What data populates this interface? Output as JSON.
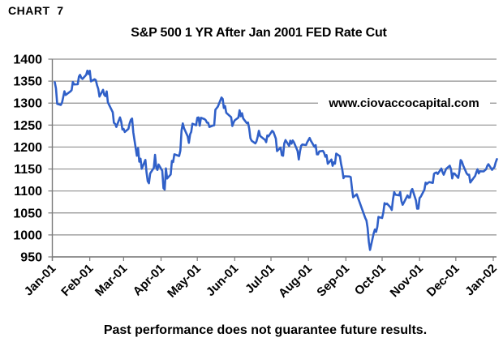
{
  "header": {
    "chart_label": "CHART  7"
  },
  "watermark": {
    "text": "www.ciovaccocapital.com"
  },
  "footer": {
    "disclaimer": "Past performance does not guarantee future results."
  },
  "colors": {
    "line": "#3060C8",
    "grid": "#8F8F8F",
    "axis": "#7A7A7A",
    "text": "#000000",
    "background": "#FFFFFF"
  },
  "chart_data": {
    "type": "line",
    "title": "S&P 500 1 YR After Jan 2001 FED Rate Cut",
    "xlabel": "",
    "ylabel": "",
    "ylim": [
      950,
      1400
    ],
    "y_ticks": [
      1400,
      1350,
      1300,
      1250,
      1200,
      1150,
      1100,
      1050,
      1000,
      950
    ],
    "grid": "horizontal-only",
    "legend_position": "none",
    "x_tick_labels": [
      "Jan-01",
      "Feb-01",
      "Mar-01",
      "Apr-01",
      "May-01",
      "Jun-01",
      "Jul-01",
      "Aug-01",
      "Sep-01",
      "Oct-01",
      "Nov-01",
      "Dec-01",
      "Jan-02"
    ],
    "x_tick_day_offsets": [
      0,
      31,
      59,
      90,
      120,
      151,
      181,
      212,
      243,
      273,
      304,
      334,
      365
    ],
    "series": [
      {
        "name": "S&P 500",
        "points": [
          [
            "2001-01-03",
            1347.56
          ],
          [
            "2001-01-04",
            1333.34
          ],
          [
            "2001-01-05",
            1298.35
          ],
          [
            "2001-01-08",
            1295.86
          ],
          [
            "2001-01-09",
            1300.8
          ],
          [
            "2001-01-10",
            1313.27
          ],
          [
            "2001-01-11",
            1326.82
          ],
          [
            "2001-01-12",
            1318.55
          ],
          [
            "2001-01-16",
            1326.65
          ],
          [
            "2001-01-17",
            1329.47
          ],
          [
            "2001-01-18",
            1347.97
          ],
          [
            "2001-01-19",
            1342.54
          ],
          [
            "2001-01-22",
            1342.9
          ],
          [
            "2001-01-23",
            1360.4
          ],
          [
            "2001-01-24",
            1364.3
          ],
          [
            "2001-01-25",
            1357.51
          ],
          [
            "2001-01-26",
            1354.95
          ],
          [
            "2001-01-29",
            1364.17
          ],
          [
            "2001-01-30",
            1373.73
          ],
          [
            "2001-01-31",
            1366.01
          ],
          [
            "2001-02-01",
            1373.47
          ],
          [
            "2001-02-02",
            1349.47
          ],
          [
            "2001-02-05",
            1354.31
          ],
          [
            "2001-02-06",
            1352.26
          ],
          [
            "2001-02-07",
            1340.89
          ],
          [
            "2001-02-08",
            1332.53
          ],
          [
            "2001-02-09",
            1314.76
          ],
          [
            "2001-02-12",
            1330.31
          ],
          [
            "2001-02-13",
            1318.8
          ],
          [
            "2001-02-14",
            1315.92
          ],
          [
            "2001-02-15",
            1326.61
          ],
          [
            "2001-02-16",
            1301.53
          ],
          [
            "2001-02-20",
            1278.94
          ],
          [
            "2001-02-21",
            1255.27
          ],
          [
            "2001-02-22",
            1252.82
          ],
          [
            "2001-02-23",
            1245.86
          ],
          [
            "2001-02-26",
            1267.65
          ],
          [
            "2001-02-27",
            1257.94
          ],
          [
            "2001-02-28",
            1239.94
          ],
          [
            "2001-03-01",
            1241.23
          ],
          [
            "2001-03-02",
            1234.18
          ],
          [
            "2001-03-05",
            1241.41
          ],
          [
            "2001-03-06",
            1253.8
          ],
          [
            "2001-03-07",
            1261.89
          ],
          [
            "2001-03-08",
            1264.74
          ],
          [
            "2001-03-09",
            1233.42
          ],
          [
            "2001-03-12",
            1180.16
          ],
          [
            "2001-03-13",
            1197.66
          ],
          [
            "2001-03-14",
            1166.71
          ],
          [
            "2001-03-15",
            1173.56
          ],
          [
            "2001-03-16",
            1150.53
          ],
          [
            "2001-03-19",
            1170.81
          ],
          [
            "2001-03-20",
            1142.62
          ],
          [
            "2001-03-21",
            1122.14
          ],
          [
            "2001-03-22",
            1117.58
          ],
          [
            "2001-03-23",
            1139.83
          ],
          [
            "2001-03-26",
            1152.69
          ],
          [
            "2001-03-27",
            1182.17
          ],
          [
            "2001-03-28",
            1153.29
          ],
          [
            "2001-03-29",
            1147.95
          ],
          [
            "2001-03-30",
            1160.33
          ],
          [
            "2001-04-02",
            1145.87
          ],
          [
            "2001-04-03",
            1106.46
          ],
          [
            "2001-04-04",
            1103.25
          ],
          [
            "2001-04-05",
            1151.44
          ],
          [
            "2001-04-06",
            1128.43
          ],
          [
            "2001-04-09",
            1137.59
          ],
          [
            "2001-04-10",
            1168.38
          ],
          [
            "2001-04-11",
            1165.89
          ],
          [
            "2001-04-12",
            1183.5
          ],
          [
            "2001-04-16",
            1179.68
          ],
          [
            "2001-04-17",
            1191.81
          ],
          [
            "2001-04-18",
            1238.16
          ],
          [
            "2001-04-19",
            1253.69
          ],
          [
            "2001-04-20",
            1242.98
          ],
          [
            "2001-04-23",
            1224.36
          ],
          [
            "2001-04-24",
            1209.47
          ],
          [
            "2001-04-25",
            1228.75
          ],
          [
            "2001-04-26",
            1234.52
          ],
          [
            "2001-04-27",
            1253.05
          ],
          [
            "2001-04-30",
            1249.46
          ],
          [
            "2001-05-01",
            1266.44
          ],
          [
            "2001-05-02",
            1267.43
          ],
          [
            "2001-05-03",
            1248.58
          ],
          [
            "2001-05-04",
            1266.61
          ],
          [
            "2001-05-07",
            1263.51
          ],
          [
            "2001-05-08",
            1261.2
          ],
          [
            "2001-05-09",
            1255.54
          ],
          [
            "2001-05-10",
            1255.18
          ],
          [
            "2001-05-11",
            1245.67
          ],
          [
            "2001-05-14",
            1248.92
          ],
          [
            "2001-05-15",
            1249.44
          ],
          [
            "2001-05-16",
            1284.99
          ],
          [
            "2001-05-17",
            1288.49
          ],
          [
            "2001-05-18",
            1291.96
          ],
          [
            "2001-05-21",
            1312.83
          ],
          [
            "2001-05-22",
            1309.38
          ],
          [
            "2001-05-23",
            1289.05
          ],
          [
            "2001-05-24",
            1293.17
          ],
          [
            "2001-05-25",
            1277.89
          ],
          [
            "2001-05-29",
            1267.93
          ],
          [
            "2001-05-30",
            1248.08
          ],
          [
            "2001-05-31",
            1255.82
          ],
          [
            "2001-06-01",
            1260.67
          ],
          [
            "2001-06-04",
            1267.11
          ],
          [
            "2001-06-05",
            1283.57
          ],
          [
            "2001-06-06",
            1270.03
          ],
          [
            "2001-06-07",
            1276.96
          ],
          [
            "2001-06-08",
            1264.96
          ],
          [
            "2001-06-11",
            1254.39
          ],
          [
            "2001-06-12",
            1255.85
          ],
          [
            "2001-06-13",
            1241.6
          ],
          [
            "2001-06-14",
            1219.87
          ],
          [
            "2001-06-15",
            1214.36
          ],
          [
            "2001-06-18",
            1208.43
          ],
          [
            "2001-06-19",
            1212.58
          ],
          [
            "2001-06-20",
            1223.14
          ],
          [
            "2001-06-21",
            1237.04
          ],
          [
            "2001-06-22",
            1225.35
          ],
          [
            "2001-06-25",
            1218.6
          ],
          [
            "2001-06-26",
            1216.76
          ],
          [
            "2001-06-27",
            1211.07
          ],
          [
            "2001-06-28",
            1226.2
          ],
          [
            "2001-06-29",
            1224.42
          ],
          [
            "2001-07-02",
            1236.72
          ],
          [
            "2001-07-03",
            1234.45
          ],
          [
            "2001-07-05",
            1219.24
          ],
          [
            "2001-07-06",
            1190.59
          ],
          [
            "2001-07-09",
            1198.78
          ],
          [
            "2001-07-10",
            1181.52
          ],
          [
            "2001-07-11",
            1180.18
          ],
          [
            "2001-07-12",
            1208.14
          ],
          [
            "2001-07-13",
            1215.68
          ],
          [
            "2001-07-16",
            1202.45
          ],
          [
            "2001-07-17",
            1214.44
          ],
          [
            "2001-07-18",
            1207.71
          ],
          [
            "2001-07-19",
            1215.02
          ],
          [
            "2001-07-20",
            1210.85
          ],
          [
            "2001-07-23",
            1191.03
          ],
          [
            "2001-07-24",
            1171.65
          ],
          [
            "2001-07-25",
            1190.49
          ],
          [
            "2001-07-26",
            1202.93
          ],
          [
            "2001-07-27",
            1205.82
          ],
          [
            "2001-07-30",
            1204.52
          ],
          [
            "2001-07-31",
            1211.23
          ],
          [
            "2001-08-01",
            1215.93
          ],
          [
            "2001-08-02",
            1220.75
          ],
          [
            "2001-08-03",
            1214.35
          ],
          [
            "2001-08-06",
            1200.48
          ],
          [
            "2001-08-07",
            1204.4
          ],
          [
            "2001-08-08",
            1183.53
          ],
          [
            "2001-08-09",
            1183.43
          ],
          [
            "2001-08-10",
            1190.16
          ],
          [
            "2001-08-13",
            1191.29
          ],
          [
            "2001-08-14",
            1186.73
          ],
          [
            "2001-08-15",
            1178.02
          ],
          [
            "2001-08-16",
            1181.66
          ],
          [
            "2001-08-17",
            1161.97
          ],
          [
            "2001-08-20",
            1171.41
          ],
          [
            "2001-08-21",
            1157.26
          ],
          [
            "2001-08-22",
            1165.31
          ],
          [
            "2001-08-23",
            1162.09
          ],
          [
            "2001-08-24",
            1184.93
          ],
          [
            "2001-08-27",
            1179.21
          ],
          [
            "2001-08-28",
            1161.51
          ],
          [
            "2001-08-29",
            1148.56
          ],
          [
            "2001-08-30",
            1129.03
          ],
          [
            "2001-08-31",
            1133.58
          ],
          [
            "2001-09-04",
            1132.94
          ],
          [
            "2001-09-05",
            1131.74
          ],
          [
            "2001-09-06",
            1106.4
          ],
          [
            "2001-09-07",
            1085.78
          ],
          [
            "2001-09-10",
            1092.54
          ],
          [
            "2001-09-17",
            1038.77
          ],
          [
            "2001-09-18",
            1032.74
          ],
          [
            "2001-09-19",
            1016.1
          ],
          [
            "2001-09-20",
            984.54
          ],
          [
            "2001-09-21",
            965.8
          ],
          [
            "2001-09-24",
            1003.45
          ],
          [
            "2001-09-25",
            1012.27
          ],
          [
            "2001-09-26",
            1007.04
          ],
          [
            "2001-09-27",
            1018.61
          ],
          [
            "2001-09-28",
            1040.94
          ],
          [
            "2001-10-01",
            1038.55
          ],
          [
            "2001-10-02",
            1051.33
          ],
          [
            "2001-10-03",
            1072.28
          ],
          [
            "2001-10-04",
            1069.63
          ],
          [
            "2001-10-05",
            1071.38
          ],
          [
            "2001-10-08",
            1062.44
          ],
          [
            "2001-10-09",
            1056.75
          ],
          [
            "2001-10-10",
            1080.99
          ],
          [
            "2001-10-11",
            1097.43
          ],
          [
            "2001-10-12",
            1091.65
          ],
          [
            "2001-10-15",
            1089.98
          ],
          [
            "2001-10-16",
            1097.54
          ],
          [
            "2001-10-17",
            1077.09
          ],
          [
            "2001-10-18",
            1068.61
          ],
          [
            "2001-10-19",
            1073.48
          ],
          [
            "2001-10-22",
            1089.9
          ],
          [
            "2001-10-23",
            1084.78
          ],
          [
            "2001-10-24",
            1085.2
          ],
          [
            "2001-10-25",
            1100.09
          ],
          [
            "2001-10-26",
            1104.61
          ],
          [
            "2001-10-29",
            1078.3
          ],
          [
            "2001-10-30",
            1059.79
          ],
          [
            "2001-10-31",
            1059.78
          ],
          [
            "2001-11-01",
            1084.1
          ],
          [
            "2001-11-02",
            1087.2
          ],
          [
            "2001-11-05",
            1102.84
          ],
          [
            "2001-11-06",
            1118.86
          ],
          [
            "2001-11-07",
            1115.8
          ],
          [
            "2001-11-08",
            1118.54
          ],
          [
            "2001-11-09",
            1120.31
          ],
          [
            "2001-11-12",
            1118.33
          ],
          [
            "2001-11-13",
            1139.09
          ],
          [
            "2001-11-14",
            1141.21
          ],
          [
            "2001-11-15",
            1142.24
          ],
          [
            "2001-11-16",
            1138.65
          ],
          [
            "2001-11-19",
            1151.06
          ],
          [
            "2001-11-20",
            1142.66
          ],
          [
            "2001-11-21",
            1137.03
          ],
          [
            "2001-11-23",
            1150.34
          ],
          [
            "2001-11-26",
            1157.42
          ],
          [
            "2001-11-27",
            1149.5
          ],
          [
            "2001-11-28",
            1128.52
          ],
          [
            "2001-11-29",
            1140.2
          ],
          [
            "2001-11-30",
            1139.45
          ],
          [
            "2001-12-03",
            1129.9
          ],
          [
            "2001-12-04",
            1144.8
          ],
          [
            "2001-12-05",
            1170.35
          ],
          [
            "2001-12-06",
            1167.1
          ],
          [
            "2001-12-07",
            1158.31
          ],
          [
            "2001-12-10",
            1139.93
          ],
          [
            "2001-12-11",
            1136.76
          ],
          [
            "2001-12-12",
            1137.07
          ],
          [
            "2001-12-13",
            1119.38
          ],
          [
            "2001-12-14",
            1123.09
          ],
          [
            "2001-12-17",
            1134.36
          ],
          [
            "2001-12-18",
            1142.92
          ],
          [
            "2001-12-19",
            1149.56
          ],
          [
            "2001-12-20",
            1139.93
          ],
          [
            "2001-12-21",
            1144.89
          ],
          [
            "2001-12-24",
            1144.65
          ],
          [
            "2001-12-26",
            1149.37
          ],
          [
            "2001-12-27",
            1157.13
          ],
          [
            "2001-12-28",
            1161.02
          ],
          [
            "2001-12-31",
            1148.08
          ],
          [
            "2002-01-02",
            1154.67
          ],
          [
            "2002-01-03",
            1165.27
          ],
          [
            "2002-01-04",
            1172.51
          ]
        ]
      }
    ]
  }
}
